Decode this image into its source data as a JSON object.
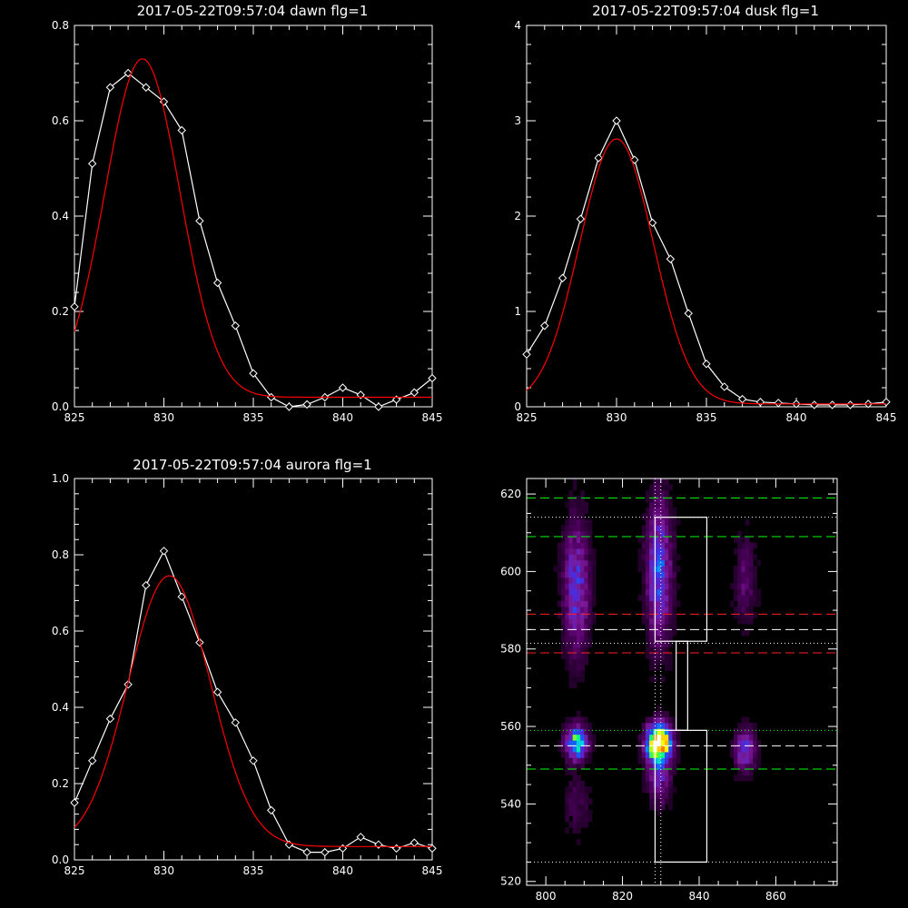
{
  "chart_data": [
    {
      "id": "dawn",
      "type": "line",
      "title": "2017-05-22T09:57:04 dawn flg=1",
      "xlim": [
        825,
        845
      ],
      "ylim": [
        0,
        0.8
      ],
      "xticks": [
        825,
        830,
        835,
        840,
        845
      ],
      "yticks": [
        0.0,
        0.2,
        0.4,
        0.6,
        0.8
      ],
      "ytick_labels": [
        "0.0",
        "0.2",
        "0.4",
        "0.6",
        "0.8"
      ],
      "series": [
        {
          "color": "#ffffff",
          "marker": "diamond",
          "x": [
            825,
            826,
            827,
            828,
            829,
            830,
            831,
            832,
            833,
            834,
            835,
            836,
            837,
            838,
            839,
            840,
            841,
            842,
            843,
            844,
            845
          ],
          "y": [
            0.21,
            0.51,
            0.67,
            0.7,
            0.67,
            0.64,
            0.58,
            0.39,
            0.26,
            0.17,
            0.07,
            0.02,
            0.0,
            0.005,
            0.02,
            0.04,
            0.025,
            0.0,
            0.015,
            0.03,
            0.06
          ]
        },
        {
          "color": "#ff0000",
          "marker": "none",
          "fit": "gaussian",
          "amplitude": 0.71,
          "center": 828.8,
          "sigma": 2.1,
          "offset": 0.02
        }
      ]
    },
    {
      "id": "dusk",
      "type": "line",
      "title": "2017-05-22T09:57:04 dusk flg=1",
      "xlim": [
        825,
        845
      ],
      "ylim": [
        0,
        4
      ],
      "xticks": [
        825,
        830,
        835,
        840,
        845
      ],
      "yticks": [
        0,
        1,
        2,
        3,
        4
      ],
      "ytick_labels": [
        "0",
        "1",
        "2",
        "3",
        "4"
      ],
      "series": [
        {
          "color": "#ffffff",
          "marker": "diamond",
          "x": [
            825,
            826,
            827,
            828,
            829,
            830,
            831,
            832,
            833,
            834,
            835,
            836,
            837,
            838,
            839,
            840,
            841,
            842,
            843,
            844,
            845
          ],
          "y": [
            0.55,
            0.85,
            1.35,
            1.97,
            2.61,
            3.0,
            2.59,
            1.93,
            1.55,
            0.98,
            0.45,
            0.21,
            0.08,
            0.05,
            0.04,
            0.03,
            0.02,
            0.02,
            0.02,
            0.03,
            0.05
          ]
        },
        {
          "color": "#ff0000",
          "marker": "none",
          "fit": "gaussian",
          "amplitude": 2.78,
          "center": 830.0,
          "sigma": 2.05,
          "offset": 0.03
        }
      ]
    },
    {
      "id": "aurora",
      "type": "line",
      "title": "2017-05-22T09:57:04 aurora flg=1",
      "xlim": [
        825,
        845
      ],
      "ylim": [
        0,
        1.0
      ],
      "xticks": [
        825,
        830,
        835,
        840,
        845
      ],
      "yticks": [
        0.0,
        0.2,
        0.4,
        0.6,
        0.8,
        1.0
      ],
      "ytick_labels": [
        "0.0",
        "0.2",
        "0.4",
        "0.6",
        "0.8",
        "1.0"
      ],
      "series": [
        {
          "color": "#ffffff",
          "marker": "diamond",
          "x": [
            825,
            826,
            827,
            828,
            829,
            830,
            831,
            832,
            833,
            834,
            835,
            836,
            837,
            838,
            839,
            840,
            841,
            842,
            843,
            844,
            845
          ],
          "y": [
            0.15,
            0.26,
            0.37,
            0.46,
            0.72,
            0.81,
            0.69,
            0.57,
            0.44,
            0.36,
            0.26,
            0.13,
            0.04,
            0.02,
            0.02,
            0.03,
            0.06,
            0.04,
            0.03,
            0.045,
            0.03
          ]
        },
        {
          "color": "#ff0000",
          "marker": "none",
          "fit": "gaussian",
          "amplitude": 0.71,
          "center": 830.3,
          "sigma": 2.3,
          "offset": 0.035
        }
      ]
    },
    {
      "id": "image",
      "type": "heatmap",
      "xlim": [
        795,
        876
      ],
      "ylim": [
        519,
        624
      ],
      "xticks": [
        800,
        820,
        840,
        860
      ],
      "yticks": [
        520,
        540,
        560,
        580,
        600,
        620
      ],
      "colormap": [
        "#000000",
        "#2a0033",
        "#550066",
        "#7a1a99",
        "#4b2be0",
        "#1060ff",
        "#00c0ff",
        "#00ff80",
        "#c0ff00",
        "#ffff00",
        "#ff8000",
        "#ff0000",
        "#ffffff"
      ],
      "blobs": [
        {
          "x": 808,
          "y": 596,
          "sx": 2.4,
          "sy": 12,
          "amp": 0.32
        },
        {
          "x": 808,
          "y": 556,
          "sx": 2.0,
          "sy": 3.0,
          "amp": 0.55
        },
        {
          "x": 829.5,
          "y": 600,
          "sx": 2.3,
          "sy": 13,
          "amp": 0.36
        },
        {
          "x": 829.5,
          "y": 556,
          "sx": 2.2,
          "sy": 3.2,
          "amp": 1.0
        },
        {
          "x": 829.5,
          "y": 547,
          "sx": 2.2,
          "sy": 5,
          "amp": 0.25
        },
        {
          "x": 852,
          "y": 598,
          "sx": 2.0,
          "sy": 8,
          "amp": 0.15
        },
        {
          "x": 852,
          "y": 554,
          "sx": 2.0,
          "sy": 4,
          "amp": 0.3
        },
        {
          "x": 808,
          "y": 540,
          "sx": 2.5,
          "sy": 6,
          "amp": 0.1
        }
      ],
      "hlines": [
        {
          "y": 619,
          "color": "#00ff00",
          "style": "dashed"
        },
        {
          "y": 609,
          "color": "#00ff00",
          "style": "dashed"
        },
        {
          "y": 614,
          "color": "#ffffff",
          "style": "dotted"
        },
        {
          "y": 589,
          "color": "#ff2020",
          "style": "dashed"
        },
        {
          "y": 585,
          "color": "#ffffff",
          "style": "dashed"
        },
        {
          "y": 581.5,
          "color": "#ffffff",
          "style": "dotted"
        },
        {
          "y": 579,
          "color": "#ff2020",
          "style": "dashed"
        },
        {
          "y": 559,
          "color": "#00ff00",
          "style": "dotted"
        },
        {
          "y": 555,
          "color": "#ffffff",
          "style": "dashed"
        },
        {
          "y": 549,
          "color": "#00ff00",
          "style": "dashed"
        },
        {
          "y": 525,
          "color": "#ffffff",
          "style": "dotted"
        }
      ],
      "vlines": [
        {
          "x": 828.5,
          "color": "#ffffff",
          "style": "dotted"
        },
        {
          "x": 830.0,
          "color": "#ffffff",
          "style": "dotted"
        }
      ],
      "boxes": [
        {
          "x0": 828.5,
          "x1": 842,
          "y0": 582,
          "y1": 614
        },
        {
          "x0": 828.5,
          "x1": 842,
          "y0": 525,
          "y1": 559
        },
        {
          "x0": 834,
          "x1": 837,
          "y0": 559,
          "y1": 582
        }
      ]
    }
  ]
}
